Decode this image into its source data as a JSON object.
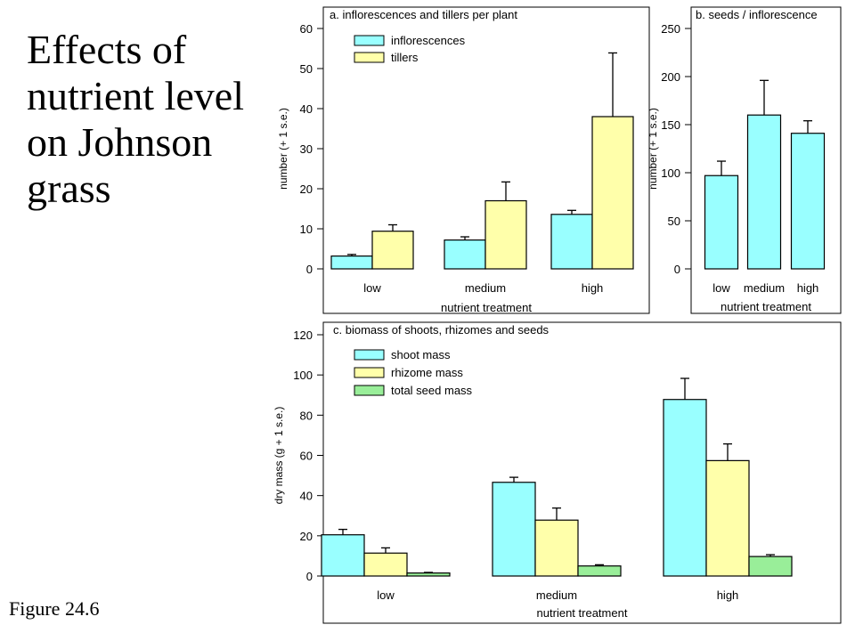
{
  "slide": {
    "title": "Effects of nutrient level on Johnson grass",
    "figure_label": "Figure 24.6"
  },
  "chart_data": [
    {
      "type": "bar",
      "title": "a. inflorescences and tillers per plant",
      "xlabel": "nutrient treatment",
      "ylabel": "number (+ 1 s.e.)",
      "ylim": [
        0,
        60
      ],
      "yticks": [
        0,
        10,
        20,
        30,
        40,
        50,
        60
      ],
      "categories": [
        "low",
        "medium",
        "high"
      ],
      "legend_position": "top-left",
      "series": [
        {
          "name": "inflorescences",
          "color": "#99ffff",
          "values": [
            3.2,
            7.2,
            13.6
          ],
          "errors": [
            0.4,
            0.8,
            1.0
          ]
        },
        {
          "name": "tillers",
          "color": "#ffffaa",
          "values": [
            9.4,
            17.0,
            38.0
          ],
          "errors": [
            1.6,
            4.7,
            15.9
          ]
        }
      ]
    },
    {
      "type": "bar",
      "title": "b. seeds / inflorescence",
      "xlabel": "nutrient treatment",
      "ylabel": "number (+ 1 s.e.)",
      "ylim": [
        0,
        250
      ],
      "yticks": [
        0,
        50,
        100,
        150,
        200,
        250
      ],
      "categories": [
        "low",
        "medium",
        "high"
      ],
      "series": [
        {
          "name": "",
          "color": "#99ffff",
          "values": [
            97,
            160,
            141
          ],
          "errors": [
            15,
            36,
            13
          ]
        }
      ]
    },
    {
      "type": "bar",
      "title": "c. biomass of shoots, rhizomes and seeds",
      "xlabel": "nutrient treatment",
      "ylabel": "dry mass (g + 1 s.e.)",
      "ylim": [
        0,
        120
      ],
      "yticks": [
        0,
        20,
        40,
        60,
        80,
        100,
        120
      ],
      "categories": [
        "low",
        "medium",
        "high"
      ],
      "legend_position": "top-left",
      "series": [
        {
          "name": "shoot mass",
          "color": "#99ffff",
          "values": [
            20.5,
            46.6,
            87.8
          ],
          "errors": [
            2.7,
            2.5,
            10.5
          ]
        },
        {
          "name": "rhizome mass",
          "color": "#ffffaa",
          "values": [
            11.4,
            27.8,
            57.4
          ],
          "errors": [
            2.6,
            6.0,
            8.3
          ]
        },
        {
          "name": "total seed mass",
          "color": "#99ee99",
          "values": [
            1.5,
            5.0,
            9.7
          ],
          "errors": [
            0.3,
            0.6,
            0.9
          ]
        }
      ]
    }
  ]
}
